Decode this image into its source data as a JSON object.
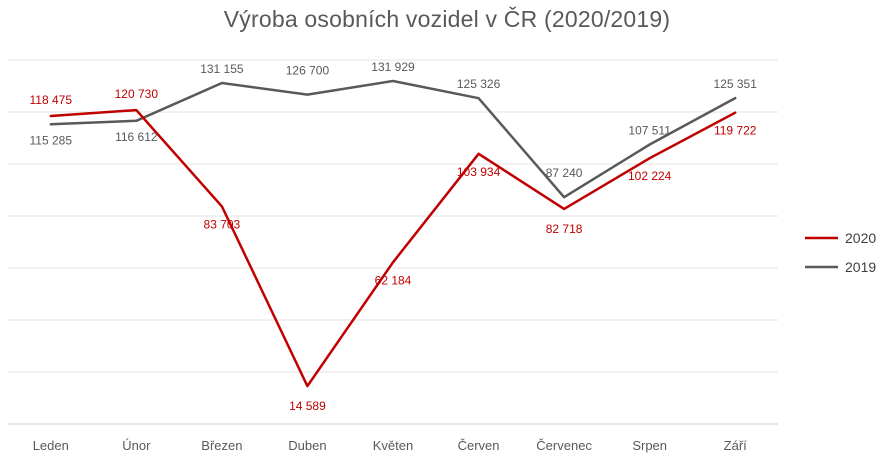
{
  "chart_data": {
    "type": "line",
    "title": "Výroba osobních vozidel v ČR (2020/2019)",
    "categories": [
      "Leden",
      "Únor",
      "Březen",
      "Duben",
      "Květen",
      "Červen",
      "Červenec",
      "Srpen",
      "Září"
    ],
    "series": [
      {
        "name": "2020",
        "color": "#c00000",
        "values": [
          118475,
          120730,
          83703,
          14589,
          62184,
          103934,
          82718,
          102224,
          119722
        ],
        "labels": [
          "118 475",
          "120 730",
          "83 703",
          "14 589",
          "62 184",
          "103 934",
          "82 718",
          "102 224",
          "119 722"
        ]
      },
      {
        "name": "2019",
        "color": "#595959",
        "values": [
          115285,
          116612,
          131155,
          126700,
          131929,
          125326,
          87240,
          107511,
          125351
        ],
        "labels": [
          "115 285",
          "116 612",
          "131 155",
          "126 700",
          "131 929",
          "125 326",
          "87 240",
          "107 511",
          "125 351"
        ]
      }
    ],
    "ylim": [
      0,
      140000
    ],
    "grid": true,
    "legend_position": "right",
    "xlabel": "",
    "ylabel": ""
  }
}
